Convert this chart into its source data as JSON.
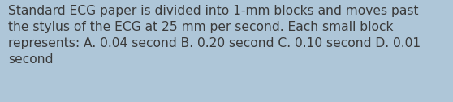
{
  "text": "Standard ECG paper is divided into 1-mm blocks and moves past\nthe stylus of the ECG at 25 mm per second. Each small block\nrepresents: A. 0.04 second B. 0.20 second C. 0.10 second D. 0.01\nsecond",
  "background_color": "#aec6d8",
  "text_color": "#3a3a3a",
  "font_size": 11.2,
  "fig_width": 5.58,
  "fig_height": 1.26,
  "dpi": 100
}
